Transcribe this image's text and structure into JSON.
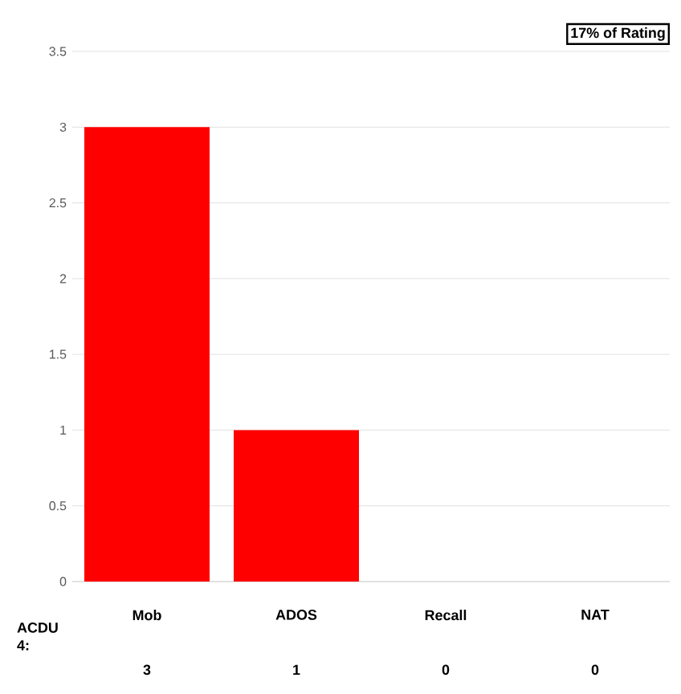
{
  "chart_data": {
    "type": "bar",
    "categories": [
      "Mob",
      "ADOS",
      "Recall",
      "NAT"
    ],
    "series": [
      {
        "name": "ACDU 4:",
        "color": "#ff0000",
        "values": [
          3,
          1,
          0,
          0
        ]
      }
    ],
    "ylim": [
      0,
      3.5
    ],
    "yticks": [
      0,
      0.5,
      1,
      1.5,
      2,
      2.5,
      3,
      3.5
    ],
    "grid": "y",
    "data_labels": true,
    "annotations": [
      "17% of Rating"
    ]
  }
}
